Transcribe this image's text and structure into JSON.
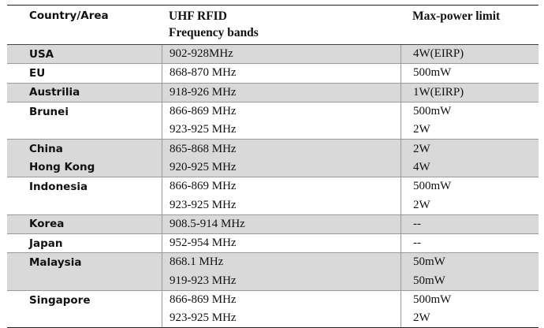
{
  "header": {
    "country": "Country/Area",
    "band_line1": "UHF RFID",
    "band_line2": "Frequency bands",
    "power": "Max-power limit"
  },
  "rows": [
    {
      "country": "USA",
      "band": "902-928MHz",
      "power": "4W(EIRP)"
    },
    {
      "country": "EU",
      "band": "868-870 MHz",
      "power": "500mW"
    },
    {
      "country": "Austrilia",
      "band": "918-926 MHz",
      "power": "1W(EIRP)"
    },
    {
      "country": "Brunei",
      "band": "866-869 MHz",
      "power": "500mW"
    },
    {
      "country": "",
      "band": "923-925 MHz",
      "power": "2W"
    },
    {
      "country": "China",
      "band": "865-868 MHz",
      "power": "2W"
    },
    {
      "country": "Hong Kong",
      "band": "920-925 MHz",
      "power": "4W"
    },
    {
      "country": "Indonesia",
      "band": "866-869 MHz",
      "power": "500mW"
    },
    {
      "country": "",
      "band": "923-925 MHz",
      "power": "2W"
    },
    {
      "country": "Korea",
      "band": "908.5-914 MHz",
      "power": "--"
    },
    {
      "country": "Japan",
      "band": "952-954 MHz",
      "power": "--"
    },
    {
      "country": "Malaysia",
      "band": "868.1 MHz",
      "power": "50mW"
    },
    {
      "country": "",
      "band": "919-923 MHz",
      "power": "50mW"
    },
    {
      "country": "Singapore",
      "band": "866-869 MHz",
      "power": "500mW"
    },
    {
      "country": "",
      "band": "923-925 MHz",
      "power": "2W"
    }
  ]
}
